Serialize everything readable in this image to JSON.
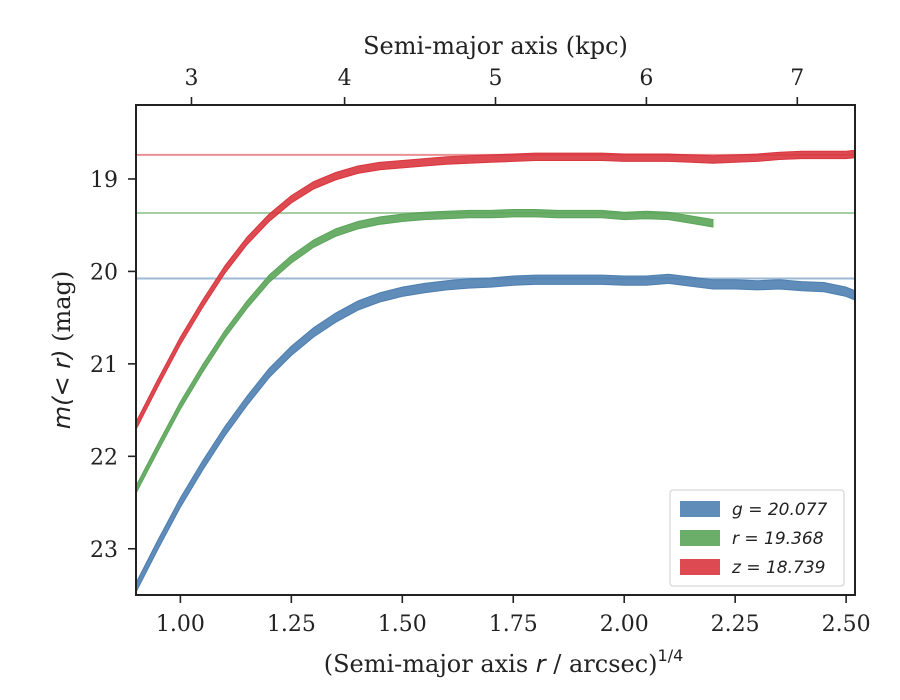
{
  "chart_data": {
    "type": "line",
    "title": "",
    "xlabel": "(Semi-major axis r / arcsec)",
    "xlabel_parts": {
      "before": "(Semi-major axis ",
      "var": "r",
      "after": " / arcsec)",
      "sup": "1/4"
    },
    "ylabel": "m(< r) (mag)",
    "ylabel_parts": {
      "math": "m(< r)",
      "unit": " (mag)"
    },
    "top_xlabel": "Semi-major axis (kpc)",
    "xlim": [
      0.9,
      2.52
    ],
    "ylim": [
      23.5,
      18.2
    ],
    "y_inverted": true,
    "x_ticks": [
      "1.00",
      "1.25",
      "1.50",
      "1.75",
      "2.00",
      "2.25",
      "2.50"
    ],
    "x_tick_values": [
      1.0,
      1.25,
      1.5,
      1.75,
      2.0,
      2.25,
      2.5
    ],
    "y_ticks": [
      "19",
      "20",
      "21",
      "22",
      "23"
    ],
    "y_tick_values": [
      19,
      20,
      21,
      22,
      23
    ],
    "top_x_ticks": [
      "3",
      "4",
      "5",
      "6",
      "7"
    ],
    "top_x_tick_values": [
      1.025,
      1.37,
      1.71,
      2.05,
      2.39
    ],
    "legend_position": "lower-right",
    "series": [
      {
        "name": "g = 20.077",
        "legend_var": "g",
        "legend_value": "20.077",
        "color": "#4e7fb0",
        "asymptote": 20.077,
        "band_halfwidth": 0.05,
        "x": [
          0.9,
          0.95,
          1.0,
          1.05,
          1.1,
          1.15,
          1.2,
          1.25,
          1.3,
          1.35,
          1.4,
          1.45,
          1.5,
          1.55,
          1.6,
          1.65,
          1.7,
          1.75,
          1.8,
          1.85,
          1.9,
          1.95,
          2.0,
          2.05,
          2.1,
          2.15,
          2.2,
          2.25,
          2.3,
          2.35,
          2.4,
          2.45,
          2.5,
          2.52
        ],
        "y": [
          23.42,
          22.95,
          22.5,
          22.1,
          21.73,
          21.4,
          21.1,
          20.86,
          20.66,
          20.5,
          20.37,
          20.28,
          20.22,
          20.18,
          20.15,
          20.13,
          20.12,
          20.1,
          20.09,
          20.09,
          20.09,
          20.09,
          20.1,
          20.1,
          20.08,
          20.11,
          20.14,
          20.14,
          20.15,
          20.14,
          20.16,
          20.17,
          20.22,
          20.26
        ]
      },
      {
        "name": "r = 19.368",
        "legend_var": "r",
        "legend_value": "19.368",
        "color": "#5ba55a",
        "asymptote": 19.368,
        "band_halfwidth": 0.04,
        "x": [
          0.9,
          0.95,
          1.0,
          1.05,
          1.1,
          1.15,
          1.2,
          1.25,
          1.3,
          1.35,
          1.4,
          1.45,
          1.5,
          1.55,
          1.6,
          1.65,
          1.7,
          1.75,
          1.8,
          1.85,
          1.9,
          1.95,
          2.0,
          2.05,
          2.1,
          2.15,
          2.2
        ],
        "y": [
          22.36,
          21.9,
          21.45,
          21.05,
          20.68,
          20.36,
          20.08,
          19.87,
          19.7,
          19.58,
          19.5,
          19.45,
          19.42,
          19.4,
          19.39,
          19.38,
          19.38,
          19.37,
          19.37,
          19.38,
          19.38,
          19.38,
          19.4,
          19.39,
          19.4,
          19.44,
          19.48
        ]
      },
      {
        "name": "z = 18.739",
        "legend_var": "z",
        "legend_value": "18.739",
        "color": "#d9363e",
        "asymptote": 18.739,
        "band_halfwidth": 0.04,
        "x": [
          0.9,
          0.95,
          1.0,
          1.05,
          1.1,
          1.15,
          1.2,
          1.25,
          1.3,
          1.35,
          1.4,
          1.45,
          1.5,
          1.55,
          1.6,
          1.65,
          1.7,
          1.75,
          1.8,
          1.85,
          1.9,
          1.95,
          2.0,
          2.05,
          2.1,
          2.15,
          2.2,
          2.25,
          2.3,
          2.35,
          2.4,
          2.45,
          2.5,
          2.52
        ],
        "y": [
          21.67,
          21.2,
          20.75,
          20.35,
          19.98,
          19.67,
          19.42,
          19.22,
          19.07,
          18.97,
          18.9,
          18.86,
          18.84,
          18.82,
          18.8,
          18.79,
          18.78,
          18.77,
          18.76,
          18.76,
          18.76,
          18.76,
          18.77,
          18.77,
          18.77,
          18.78,
          18.79,
          18.78,
          18.77,
          18.75,
          18.74,
          18.74,
          18.74,
          18.73
        ]
      }
    ]
  }
}
